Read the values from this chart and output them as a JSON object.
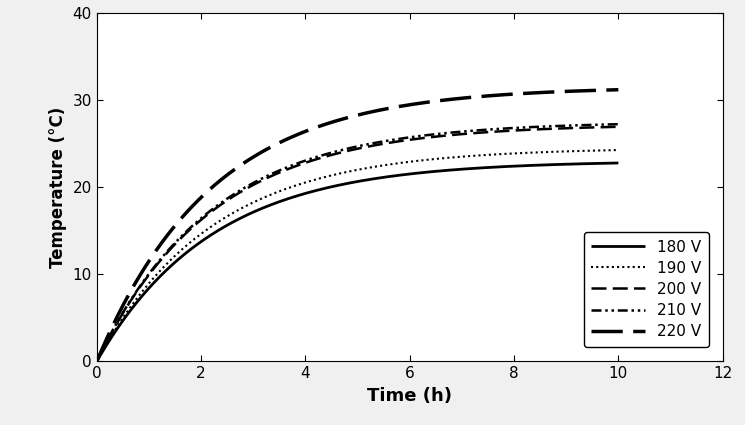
{
  "xlabel": "Time (h)",
  "ylabel": "Temperature (°C)",
  "xlim": [
    0,
    12
  ],
  "ylim": [
    0,
    40
  ],
  "xticks": [
    0,
    2,
    4,
    6,
    8,
    10,
    12
  ],
  "yticks": [
    0,
    10,
    20,
    30,
    40
  ],
  "series": [
    {
      "label": "180 V",
      "linewidth": 2.0,
      "color": "#000000",
      "T_max": 23.0,
      "tau": 2.2
    },
    {
      "label": "190 V",
      "linewidth": 1.5,
      "color": "#000000",
      "T_max": 24.5,
      "tau": 2.2
    },
    {
      "label": "200 V",
      "linewidth": 1.8,
      "color": "#000000",
      "T_max": 27.2,
      "tau": 2.2
    },
    {
      "label": "210 V",
      "linewidth": 1.8,
      "color": "#000000",
      "T_max": 27.5,
      "tau": 2.2
    },
    {
      "label": "220 V",
      "linewidth": 2.5,
      "color": "#000000",
      "T_max": 31.5,
      "tau": 2.2
    }
  ],
  "background_color": "#ffffff",
  "figure_background": "#f0f0f0"
}
